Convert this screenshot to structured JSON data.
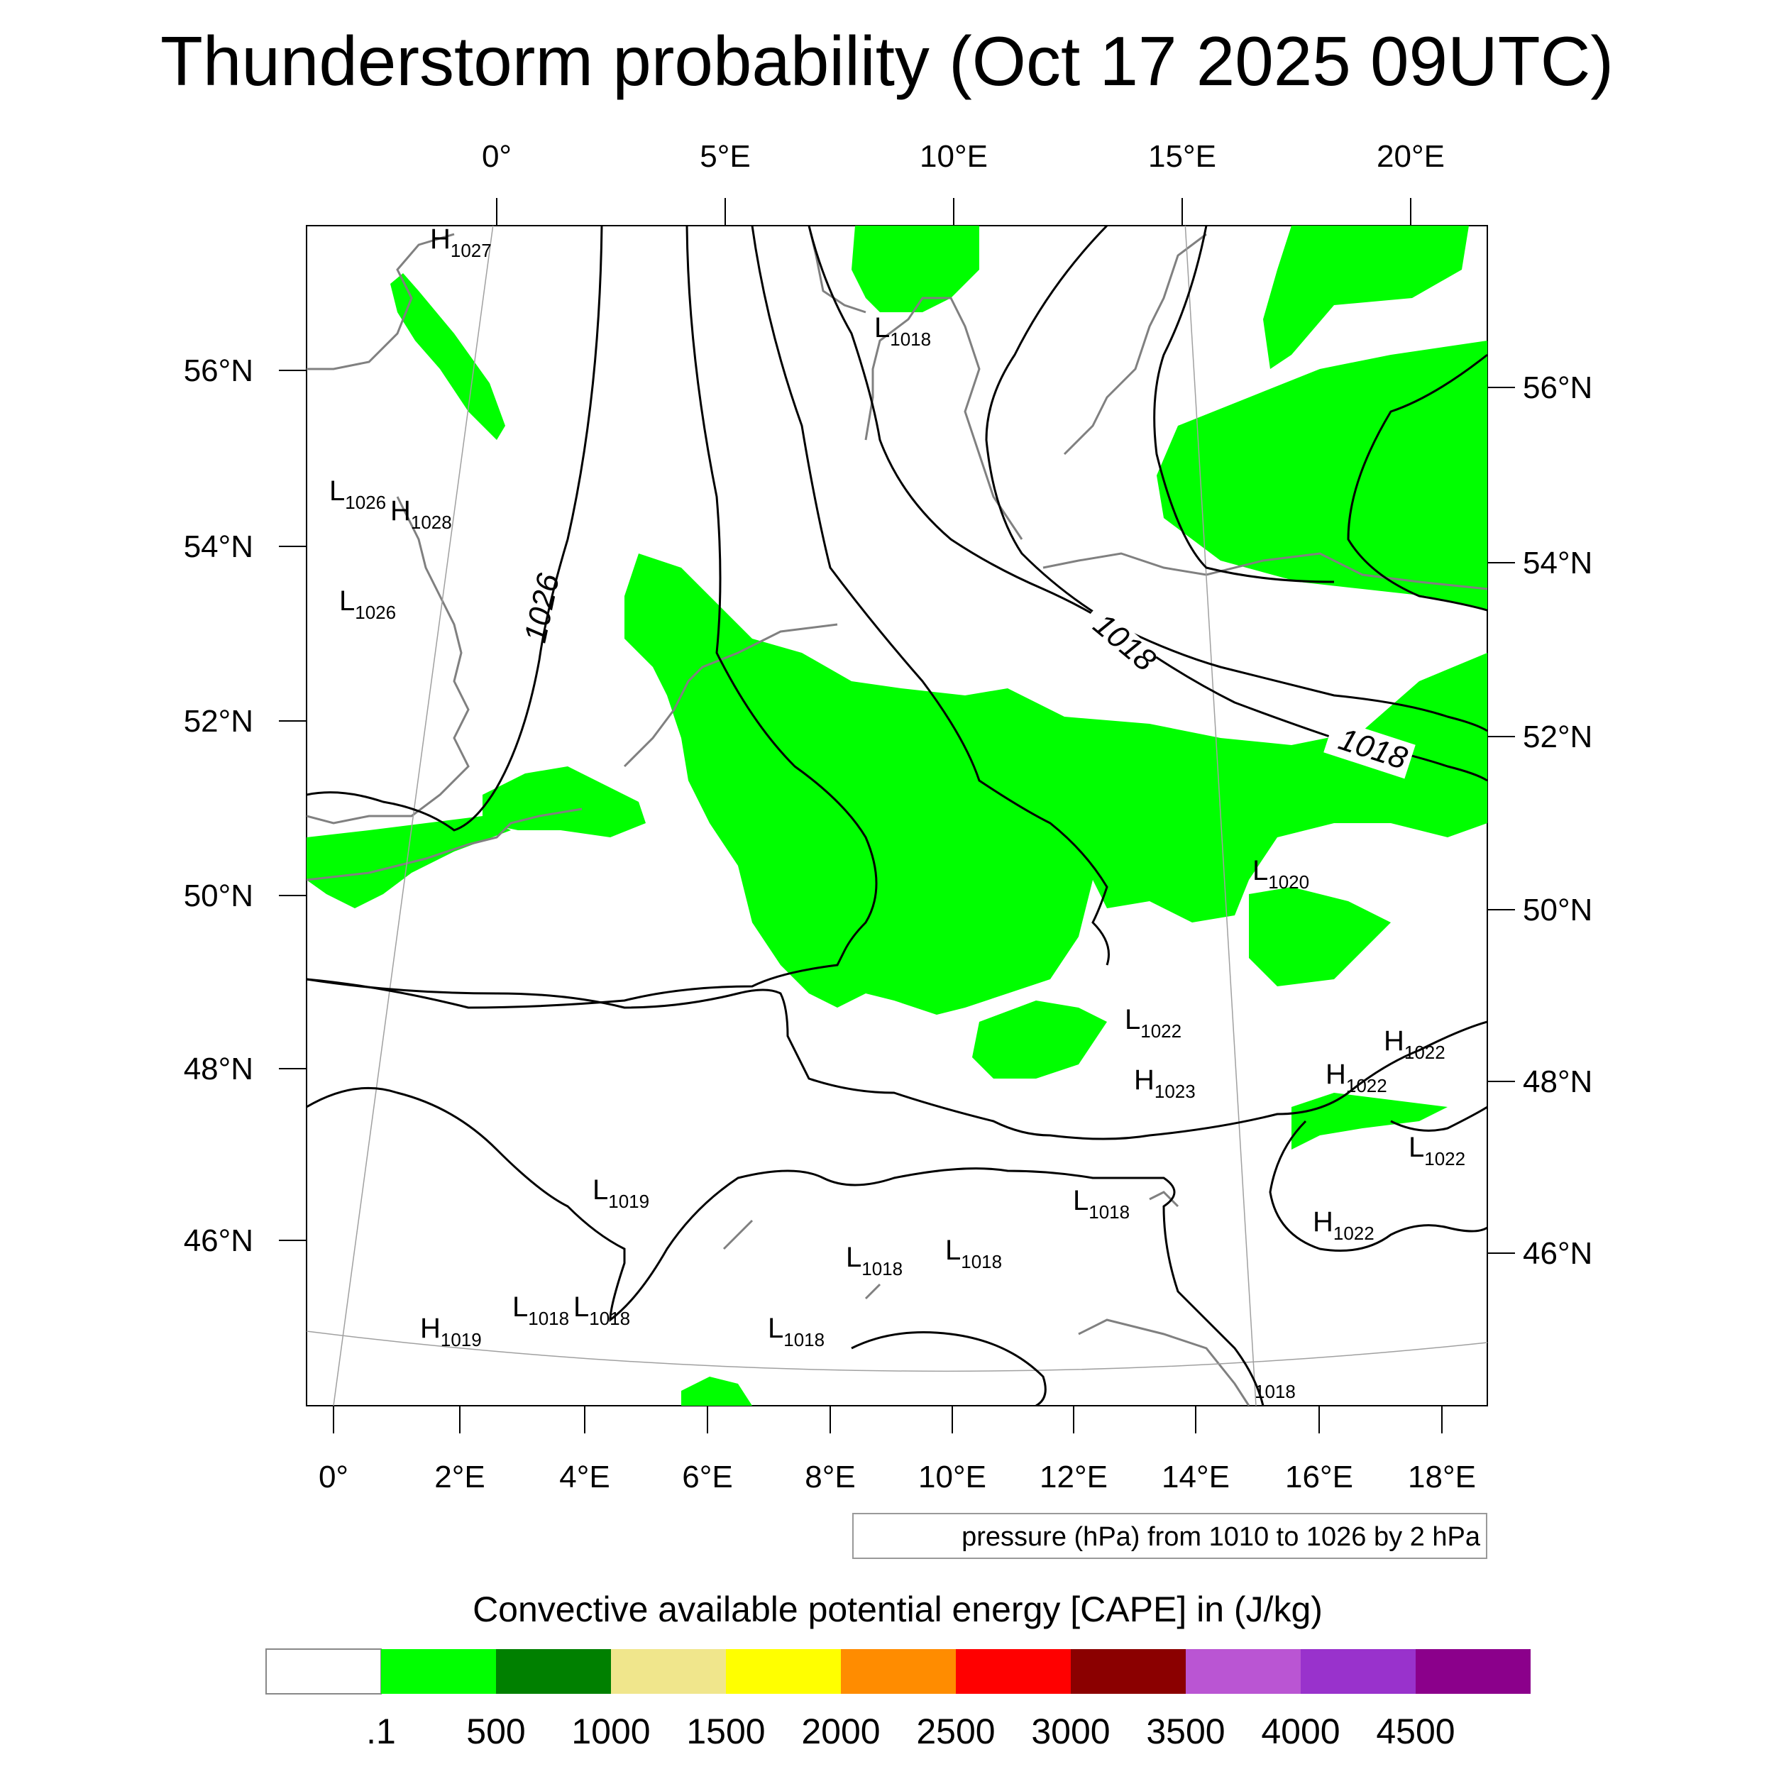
{
  "title": "Thunderstorm probability (Oct 17 2025 09UTC)",
  "map": {
    "top_lon_labels": [
      "0°",
      "5°E",
      "10°E",
      "15°E",
      "20°E"
    ],
    "bottom_lon_labels": [
      "0°",
      "2°E",
      "4°E",
      "6°E",
      "8°E",
      "10°E",
      "12°E",
      "14°E",
      "16°E",
      "18°E"
    ],
    "left_lat_labels": [
      "56°N",
      "54°N",
      "52°N",
      "50°N",
      "48°N",
      "46°N"
    ],
    "right_lat_labels": [
      "56°N",
      "54°N",
      "52°N",
      "50°N",
      "48°N",
      "46°N"
    ],
    "isobar_labels": [
      "1026",
      "1018",
      "1018"
    ],
    "pressure_centers": [
      {
        "type": "H",
        "value": "1027"
      },
      {
        "type": "L",
        "value": "1018"
      },
      {
        "type": "L",
        "value": "1026"
      },
      {
        "type": "H",
        "value": "1028"
      },
      {
        "type": "L",
        "value": "1026"
      },
      {
        "type": "L",
        "value": "1020"
      },
      {
        "type": "L",
        "value": "1022"
      },
      {
        "type": "H",
        "value": "1022"
      },
      {
        "type": "H",
        "value": "1022"
      },
      {
        "type": "H",
        "value": "1023"
      },
      {
        "type": "L",
        "value": "1022"
      },
      {
        "type": "L",
        "value": "1019"
      },
      {
        "type": "L",
        "value": "1018"
      },
      {
        "type": "H",
        "value": "1022"
      },
      {
        "type": "L",
        "value": "1018"
      },
      {
        "type": "L",
        "value": "1018"
      },
      {
        "type": "L",
        "value": "1018"
      },
      {
        "type": "L",
        "value": "1018"
      },
      {
        "type": "H",
        "value": "1019"
      },
      {
        "type": "L",
        "value": "1018"
      },
      {
        "type": "",
        "value": "1018"
      }
    ],
    "shading_color": "#00ff00",
    "isobar_color": "#000000",
    "coast_color": "#808080"
  },
  "pressure_note": "pressure (hPa) from 1010 to 1026 by 2 hPa",
  "colorbar": {
    "title": "Convective available potential energy [CAPE] in (J/kg)",
    "colors": [
      "#ffffff",
      "#00ff00",
      "#008000",
      "#f0e68c",
      "#ffff00",
      "#ff8c00",
      "#ff0000",
      "#8b0000",
      "#ba55d3",
      "#9932cc",
      "#8b008b"
    ],
    "ticks": [
      ".1",
      "500",
      "1000",
      "1500",
      "2000",
      "2500",
      "3000",
      "3500",
      "4000",
      "4500"
    ]
  }
}
